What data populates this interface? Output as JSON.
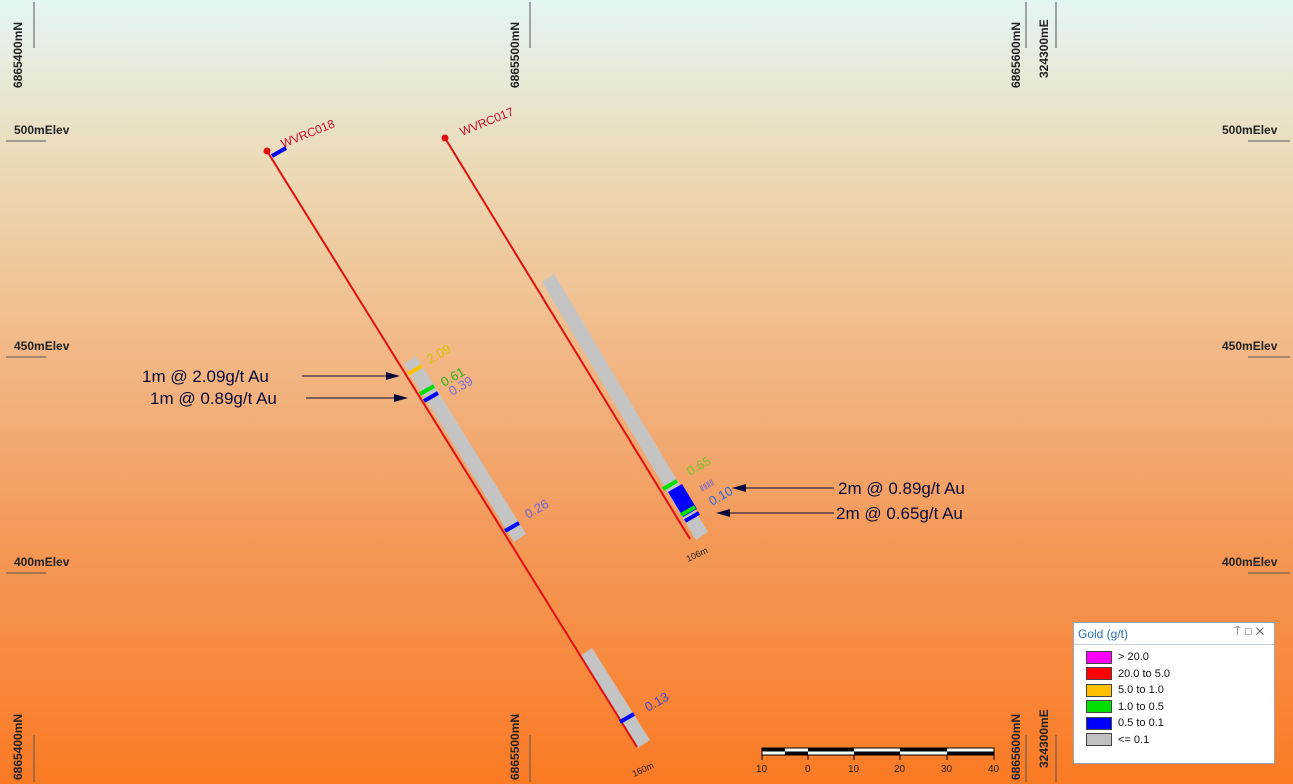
{
  "grid": {
    "northings": [
      "6865400mN",
      "6865500mN",
      "6865600mN"
    ],
    "easting": "324300mE",
    "elevations": [
      "500mElev",
      "450mElev",
      "400mElev"
    ]
  },
  "holes": [
    {
      "name": "WVRC018",
      "end_depth": "160m",
      "assays": [
        {
          "value": "2.09",
          "grade_class": "5.0 to 1.0"
        },
        {
          "value": "0.61",
          "grade_class": "1.0 to 0.5"
        },
        {
          "value": "0.39",
          "grade_class": "0.5 to 0.1"
        },
        {
          "value": "0.26",
          "grade_class": "0.5 to 0.1"
        },
        {
          "value": "0.13",
          "grade_class": "0.5 to 0.1"
        }
      ]
    },
    {
      "name": "WVRC017",
      "end_depth": "106m",
      "assays": [
        {
          "value": "0.65",
          "grade_class": "1.0 to 0.5"
        },
        {
          "value": "0.10",
          "grade_class": "0.5 to 0.1"
        }
      ]
    }
  ],
  "callouts": [
    "1m @ 2.09g/t Au",
    "1m @ 0.89g/t Au",
    "2m @ 0.89g/t Au",
    "2m @ 0.65g/t Au"
  ],
  "scale_bar": {
    "labels": [
      "10",
      "0",
      "10",
      "20",
      "30",
      "40"
    ]
  },
  "legend": {
    "title": "Gold (g/t)",
    "tools": {
      "pin_icon": "pin-icon",
      "maximize_icon": "maximize-icon",
      "close_icon": "close-icon"
    },
    "items": [
      {
        "label": "> 20.0",
        "color": "#ff00ff"
      },
      {
        "label": "20.0 to 5.0",
        "color": "#ff0000"
      },
      {
        "label": "5.0 to 1.0",
        "color": "#ffc000"
      },
      {
        "label": "1.0 to 0.5",
        "color": "#00e000"
      },
      {
        "label": "0.5 to 0.1",
        "color": "#0000ff"
      },
      {
        "label": "<= 0.1",
        "color": "#c0c0c0"
      }
    ]
  }
}
